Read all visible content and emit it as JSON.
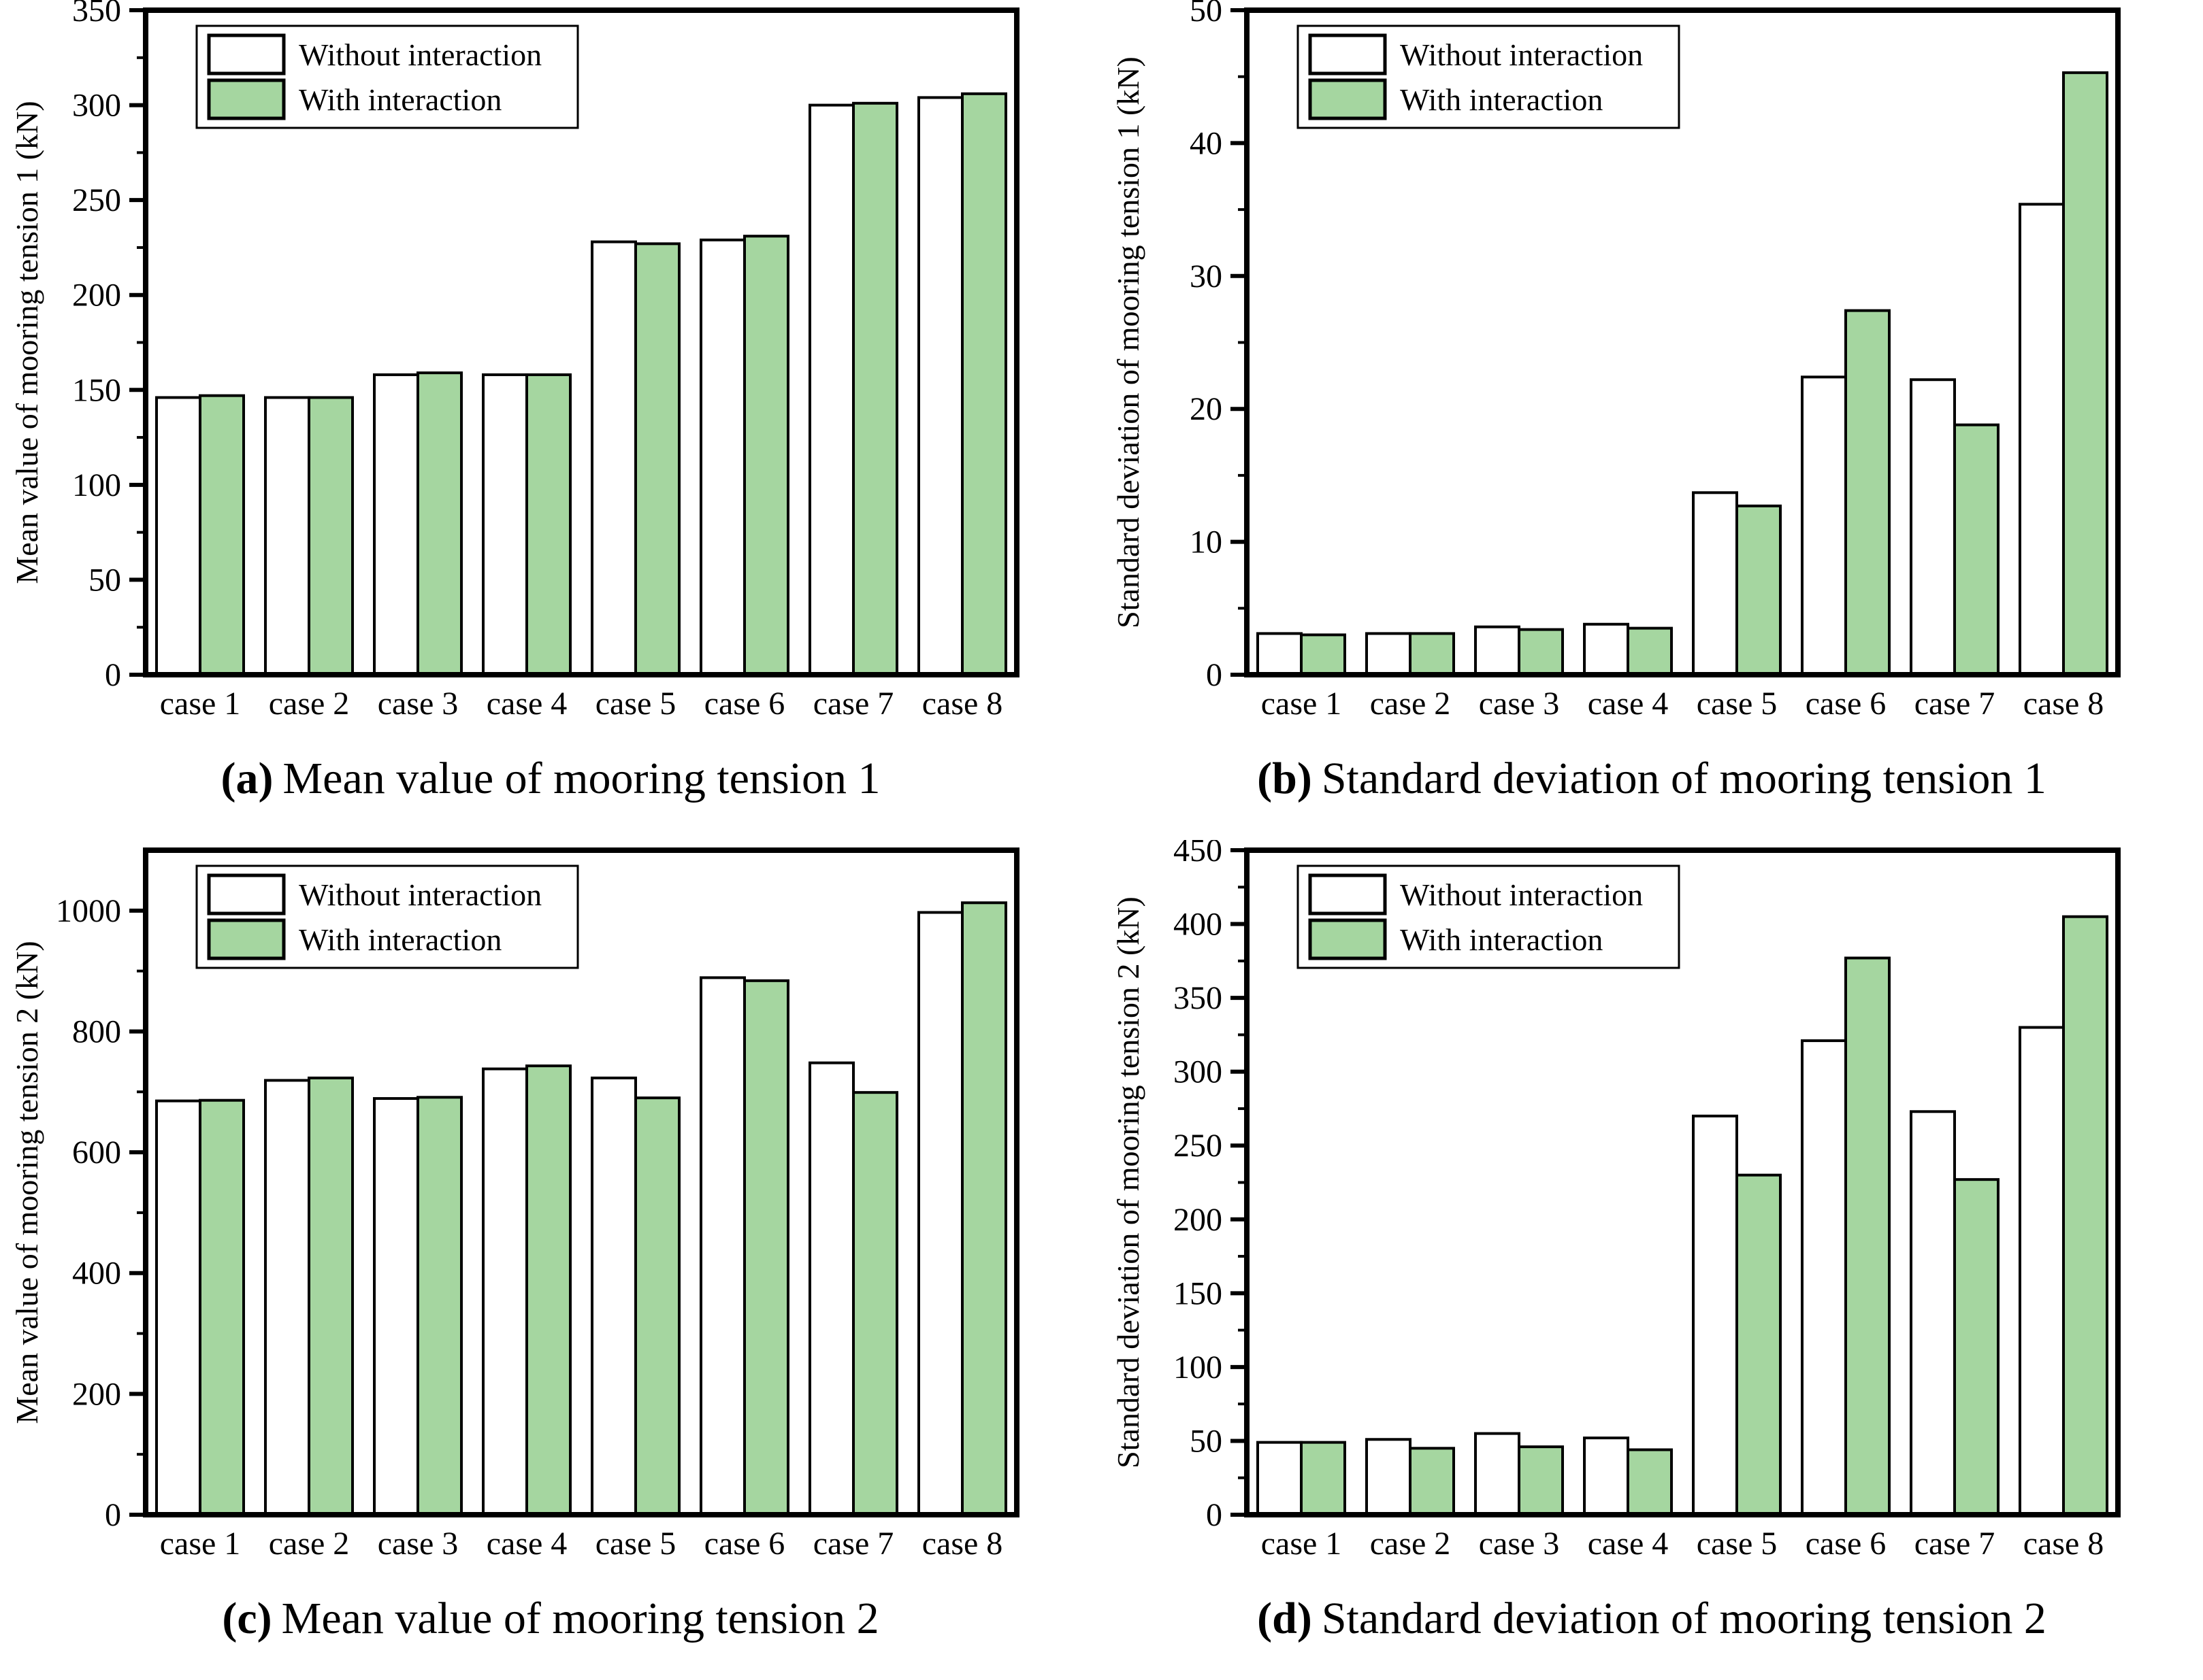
{
  "figure": {
    "background": "#ffffff",
    "text_color": "#000000",
    "bar_edge_color": "#000000",
    "legend": {
      "items": [
        {
          "label": "Without interaction",
          "fill": "#ffffff"
        },
        {
          "label": "With interaction",
          "fill": "#a5d6a0"
        }
      ]
    }
  },
  "chart_data": [
    {
      "id": "a",
      "type": "bar",
      "caption_letter": "(a)",
      "caption": "Mean value of mooring tension 1",
      "ylabel": "Mean value of mooring tension 1 (kN)",
      "xlabel": "",
      "ylim": [
        0,
        350
      ],
      "ytick_step": 50,
      "minor_ticks": true,
      "grid": false,
      "legend_position": "top-left",
      "categories": [
        "case 1",
        "case 2",
        "case 3",
        "case 4",
        "case 5",
        "case 6",
        "case 7",
        "case 8"
      ],
      "series": [
        {
          "name": "Without interaction",
          "fill": "#ffffff",
          "values": [
            146,
            146,
            158,
            158,
            228,
            229,
            300,
            304
          ]
        },
        {
          "name": "With interaction",
          "fill": "#a5d6a0",
          "values": [
            147,
            146,
            159,
            158,
            227,
            231,
            301,
            306
          ]
        }
      ]
    },
    {
      "id": "b",
      "type": "bar",
      "caption_letter": "(b)",
      "caption": "Standard deviation of mooring tension 1",
      "ylabel": "Standard deviation of mooring tension 1 (kN)",
      "xlabel": "",
      "ylim": [
        0,
        50
      ],
      "ytick_step": 10,
      "minor_ticks": true,
      "grid": false,
      "legend_position": "top-left",
      "categories": [
        "case 1",
        "case 2",
        "case 3",
        "case 4",
        "case 5",
        "case 6",
        "case 7",
        "case 8"
      ],
      "series": [
        {
          "name": "Without interaction",
          "fill": "#ffffff",
          "values": [
            3.1,
            3.1,
            3.6,
            3.8,
            13.7,
            22.4,
            22.2,
            35.4
          ]
        },
        {
          "name": "With interaction",
          "fill": "#a5d6a0",
          "values": [
            3.0,
            3.1,
            3.4,
            3.5,
            12.7,
            27.4,
            18.8,
            45.3
          ]
        }
      ]
    },
    {
      "id": "c",
      "type": "bar",
      "caption_letter": "(c)",
      "caption": "Mean value of mooring tension 2",
      "ylabel": "Mean value of mooring tension 2 (kN)",
      "xlabel": "",
      "ylim": [
        0,
        1100
      ],
      "ytick_step": 200,
      "minor_ticks": true,
      "grid": false,
      "legend_position": "top-left",
      "categories": [
        "case 1",
        "case 2",
        "case 3",
        "case 4",
        "case 5",
        "case 6",
        "case 7",
        "case 8"
      ],
      "series": [
        {
          "name": "Without interaction",
          "fill": "#ffffff",
          "values": [
            685,
            719,
            689,
            738,
            723,
            889,
            748,
            997
          ]
        },
        {
          "name": "With interaction",
          "fill": "#a5d6a0",
          "values": [
            686,
            723,
            691,
            743,
            690,
            884,
            699,
            1013
          ]
        }
      ]
    },
    {
      "id": "d",
      "type": "bar",
      "caption_letter": "(d)",
      "caption": "Standard deviation of mooring tension 2",
      "ylabel": "Standard deviation of mooring tension 2 (kN)",
      "xlabel": "",
      "ylim": [
        0,
        450
      ],
      "ytick_step": 50,
      "minor_ticks": true,
      "grid": false,
      "legend_position": "top-left",
      "categories": [
        "case 1",
        "case 2",
        "case 3",
        "case 4",
        "case 5",
        "case 6",
        "case 7",
        "case 8"
      ],
      "series": [
        {
          "name": "Without interaction",
          "fill": "#ffffff",
          "values": [
            49,
            51,
            55,
            52,
            270,
            321,
            273,
            330
          ]
        },
        {
          "name": "With interaction",
          "fill": "#a5d6a0",
          "values": [
            49,
            45,
            46,
            44,
            230,
            377,
            227,
            405
          ]
        }
      ]
    }
  ]
}
